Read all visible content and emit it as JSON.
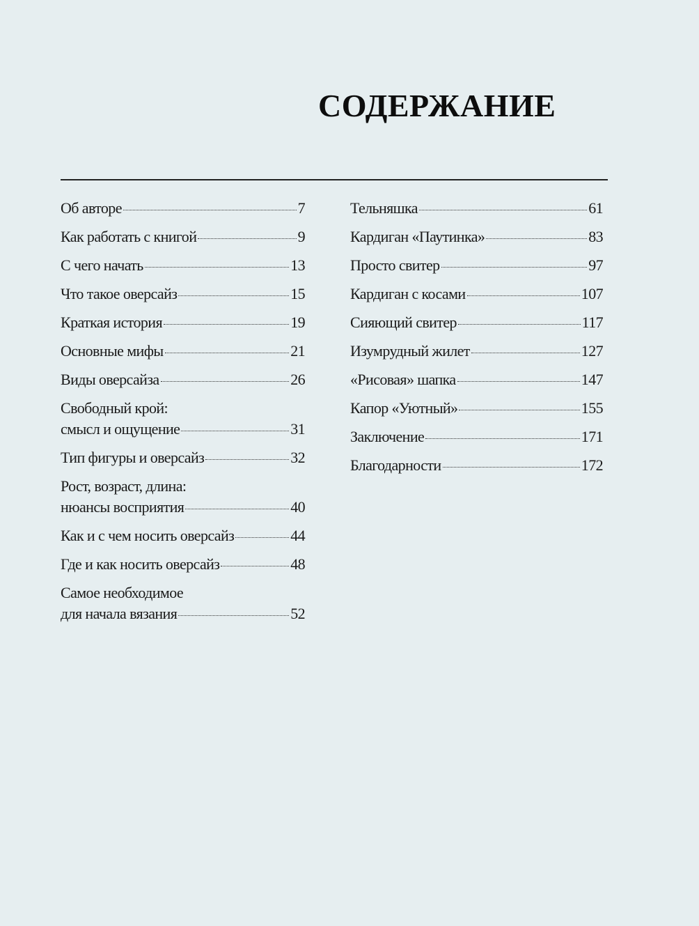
{
  "title": "СОДЕРЖАНИЕ",
  "left": [
    {
      "lines": [
        "Об авторе"
      ],
      "page": "7"
    },
    {
      "lines": [
        "Как работать с книгой"
      ],
      "page": "9"
    },
    {
      "lines": [
        "С чего начать"
      ],
      "page": "13"
    },
    {
      "lines": [
        "Что такое оверсайз"
      ],
      "page": "15"
    },
    {
      "lines": [
        "Краткая история"
      ],
      "page": "19"
    },
    {
      "lines": [
        "Основные мифы"
      ],
      "page": "21"
    },
    {
      "lines": [
        "Виды оверсайза"
      ],
      "page": "26"
    },
    {
      "lines": [
        "Свободный крой:",
        "смысл и ощущение"
      ],
      "page": "31"
    },
    {
      "lines": [
        "Тип фигуры и оверсайз"
      ],
      "page": "32"
    },
    {
      "lines": [
        "Рост, возраст, длина:",
        "нюансы восприятия"
      ],
      "page": "40"
    },
    {
      "lines": [
        "Как и с чем носить оверсайз"
      ],
      "page": "44"
    },
    {
      "lines": [
        "Где и как носить оверсайз"
      ],
      "page": "48"
    },
    {
      "lines": [
        "Самое необходимое",
        "для начала вязания"
      ],
      "page": "52"
    }
  ],
  "right": [
    {
      "lines": [
        "Тельняшка"
      ],
      "page": "61"
    },
    {
      "lines": [
        "Кардиган «Паутинка»"
      ],
      "page": "83"
    },
    {
      "lines": [
        "Просто свитер"
      ],
      "page": "97"
    },
    {
      "lines": [
        "Кардиган с косами"
      ],
      "page": "107"
    },
    {
      "lines": [
        "Сияющий свитер"
      ],
      "page": "117"
    },
    {
      "lines": [
        "Изумрудный жилет"
      ],
      "page": "127"
    },
    {
      "lines": [
        "«Рисовая» шапка"
      ],
      "page": "147"
    },
    {
      "lines": [
        "Капор «Уютный»"
      ],
      "page": "155"
    },
    {
      "lines": [
        "Заключение"
      ],
      "page": "171"
    },
    {
      "lines": [
        "Благодарности"
      ],
      "page": "172"
    }
  ]
}
